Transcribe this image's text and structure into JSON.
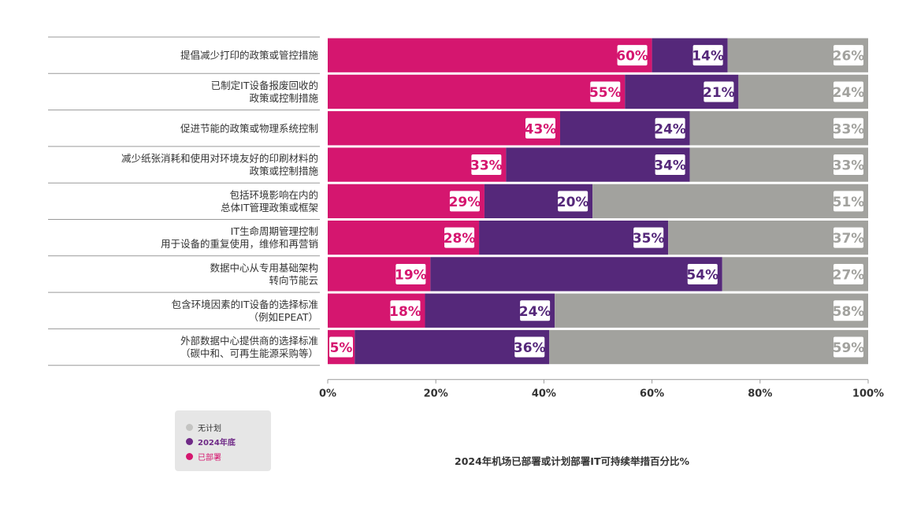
{
  "chart_data": {
    "type": "bar",
    "orientation": "horizontal",
    "stacked": true,
    "categories": [
      [
        "提倡减少打印的政策或管控措施"
      ],
      [
        "已制定IT设备报废回收的",
        "政策或控制措施"
      ],
      [
        "促进节能的政策或物理系统控制"
      ],
      [
        "减少纸张消耗和使用对环境友好的印刷材料的",
        "政策或控制措施"
      ],
      [
        "包括环境影响在内的",
        "总体IT管理政策或框架"
      ],
      [
        "IT生命周期管理控制",
        "用于设备的重复使用，维修和再营销"
      ],
      [
        "数据中心从专用基础架构",
        "转向节能云"
      ],
      [
        "包含环境因素的IT设备的选择标准",
        "（例如EPEAT）"
      ],
      [
        "外部数据中心提供商的选择标准",
        "（碳中和、可再生能源采购等）"
      ]
    ],
    "series": [
      {
        "name": "已部署",
        "color": "#d5166f",
        "values": [
          60,
          55,
          43,
          33,
          29,
          28,
          19,
          18,
          5
        ],
        "labels": [
          "60%",
          "55%",
          "43%",
          "33%",
          "29%",
          "28%",
          "19%",
          "18%",
          "5%"
        ]
      },
      {
        "name": "2024年底",
        "color": "#55287a",
        "values": [
          14,
          21,
          24,
          34,
          20,
          35,
          54,
          24,
          36
        ],
        "labels": [
          "14%",
          "21%",
          "24%",
          "34%",
          "20%",
          "35%",
          "54%",
          "24%",
          "36%"
        ]
      },
      {
        "name": "无计划",
        "color": "#a2a29e",
        "values": [
          26,
          24,
          33,
          33,
          51,
          37,
          27,
          58,
          59
        ],
        "labels": [
          "26%",
          "24%",
          "33%",
          "33%",
          "51%",
          "37%",
          "27%",
          "58%",
          "59%"
        ]
      }
    ],
    "xlim": [
      0,
      100
    ],
    "xticks": [
      0,
      20,
      40,
      60,
      80,
      100
    ],
    "xtick_labels": [
      "0%",
      "20%",
      "40%",
      "60%",
      "80%",
      "100%"
    ],
    "title": "2024年机场已部署或计划部署IT可持续举措百分比%",
    "legend_position": "bottom-left",
    "legend_order": [
      {
        "name": "无计划",
        "color": "#c4c4c2"
      },
      {
        "name": "2024年底",
        "color": "#6f2a87"
      },
      {
        "name": "已部署",
        "color": "#d5166f"
      }
    ],
    "grid": false
  }
}
